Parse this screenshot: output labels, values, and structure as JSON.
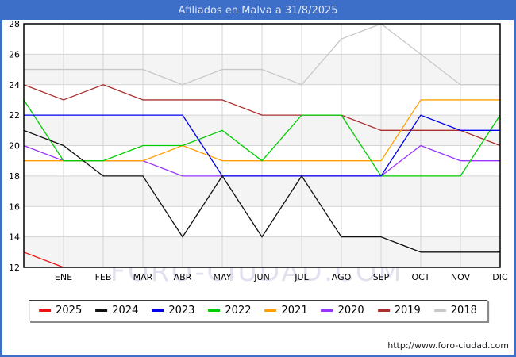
{
  "title": "Afiliados en Malva a 31/8/2025",
  "watermark": "FORO-CIUDAD.COM",
  "footer": {
    "url": "http://www.foro-ciudad.com"
  },
  "chart_data": {
    "type": "line",
    "title": "Afiliados en Malva a 31/8/2025",
    "categories": [
      "ENE",
      "FEB",
      "MAR",
      "ABR",
      "MAY",
      "JUN",
      "JUL",
      "AGO",
      "SEP",
      "OCT",
      "NOV",
      "DIC"
    ],
    "ylim": [
      12,
      28
    ],
    "yticks": [
      12,
      14,
      16,
      18,
      20,
      22,
      24,
      26,
      28
    ],
    "grid": true,
    "legend_position": "bottom",
    "note": "Each line begins at the plot's left edge with the previous year's December value (start_value); months with no drawn point are null.",
    "series": [
      {
        "name": "2025",
        "color": "#ee1111",
        "start_value": 13,
        "values": [
          12,
          null,
          null,
          null,
          null,
          null,
          null,
          null,
          null,
          null,
          null,
          null
        ]
      },
      {
        "name": "2024",
        "color": "#111111",
        "start_value": 21,
        "values": [
          20,
          18,
          18,
          14,
          18,
          14,
          18,
          14,
          14,
          13,
          13,
          13
        ]
      },
      {
        "name": "2023",
        "color": "#0000ee",
        "start_value": 22,
        "values": [
          22,
          22,
          22,
          22,
          18,
          18,
          18,
          18,
          18,
          22,
          21,
          21
        ]
      },
      {
        "name": "2022",
        "color": "#00cc00",
        "start_value": 23,
        "values": [
          19,
          19,
          20,
          20,
          21,
          19,
          22,
          22,
          18,
          18,
          18,
          22
        ]
      },
      {
        "name": "2021",
        "color": "#ffa000",
        "start_value": 19,
        "values": [
          19,
          19,
          19,
          20,
          19,
          19,
          19,
          19,
          19,
          23,
          23,
          23
        ]
      },
      {
        "name": "2020",
        "color": "#9933ff",
        "start_value": 20,
        "values": [
          19,
          19,
          19,
          18,
          18,
          18,
          18,
          18,
          18,
          20,
          19,
          19
        ]
      },
      {
        "name": "2019",
        "color": "#aa3030",
        "start_value": 24,
        "values": [
          23,
          24,
          23,
          23,
          23,
          22,
          22,
          22,
          21,
          21,
          21,
          20
        ]
      },
      {
        "name": "2018",
        "color": "#c8c8c8",
        "start_value": 25,
        "values": [
          25,
          25,
          25,
          24,
          25,
          25,
          24,
          27,
          28,
          26,
          24,
          24
        ]
      }
    ]
  }
}
